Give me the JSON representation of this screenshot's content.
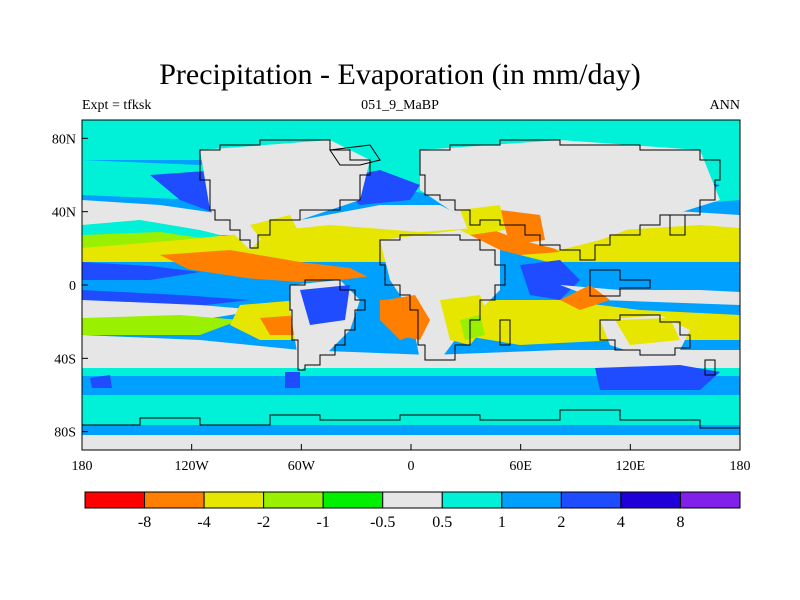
{
  "title": "Precipitation - Evaporation (in mm/day)",
  "experiment": "Expt = tfksk",
  "run_id": "051_9_MaBP",
  "period": "ANN",
  "map_axes": {
    "x_ticks": [
      "180",
      "120W",
      "60W",
      "0",
      "60E",
      "120E",
      "180"
    ],
    "y_ticks": [
      "80N",
      "40N",
      "0",
      "40S",
      "80S"
    ]
  },
  "colorbar": {
    "labels": [
      "-8",
      "-4",
      "-2",
      "-1",
      "-0.5",
      "0.5",
      "1",
      "2",
      "4",
      "8"
    ],
    "colors": [
      "#ff0000",
      "#ff8000",
      "#e6e600",
      "#99f000",
      "#00f000",
      "#e6e6e6",
      "#00f0d8",
      "#00a0ff",
      "#1f4cff",
      "#2000d8",
      "#8020e8"
    ]
  },
  "colors": {
    "land_outline": "#000000",
    "ocean_background": "#00a0ff"
  }
}
